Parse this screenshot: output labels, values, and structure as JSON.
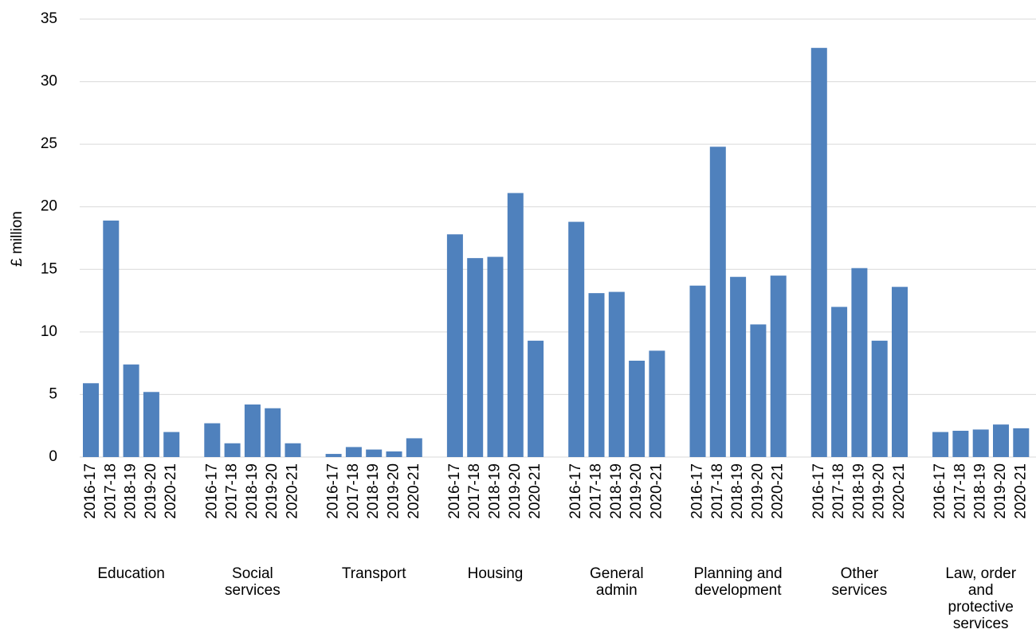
{
  "chart_data": {
    "type": "grouped-bar",
    "y_label": "£ million",
    "categories": [
      "2016-17",
      "2017-18",
      "2018-19",
      "2019-20",
      "2020-21"
    ],
    "groups": [
      {
        "name": "Education",
        "values": [
          5.9,
          18.9,
          7.4,
          5.2,
          2.0
        ]
      },
      {
        "name": "Social services",
        "values": [
          2.7,
          1.1,
          4.2,
          3.9,
          1.1
        ]
      },
      {
        "name": "Transport",
        "values": [
          0.25,
          0.8,
          0.6,
          0.45,
          1.5
        ]
      },
      {
        "name": "Housing",
        "values": [
          17.8,
          15.9,
          16.0,
          21.1,
          9.3
        ]
      },
      {
        "name": "General admin",
        "values": [
          18.8,
          13.1,
          13.2,
          7.7,
          8.5
        ]
      },
      {
        "name": "Planning and development",
        "values": [
          13.7,
          24.8,
          14.4,
          10.6,
          14.5
        ]
      },
      {
        "name": "Other services",
        "values": [
          32.7,
          12.0,
          15.1,
          9.3,
          13.6
        ]
      },
      {
        "name": "Law, order and protective services",
        "values": [
          2.0,
          2.1,
          2.2,
          2.6,
          2.3
        ]
      }
    ],
    "color": "#4f81bd",
    "ylim": [
      0,
      35
    ],
    "yticks": [
      0,
      5,
      10,
      15,
      20,
      25,
      30,
      35
    ],
    "grid": true
  }
}
